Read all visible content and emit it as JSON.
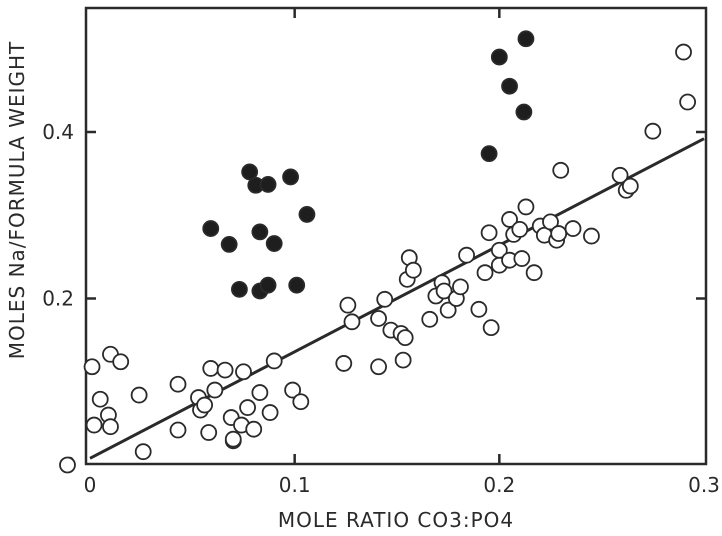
{
  "chart_data": {
    "type": "scatter",
    "title": "",
    "xlabel": "MOLE RATIO CO3:PO4",
    "ylabel": "MOLES Na/FORMULA WEIGHT",
    "xlim": [
      0,
      0.3
    ],
    "ylim": [
      0,
      0.56
    ],
    "x_ticks": [
      "0",
      "0.1",
      "0.2",
      "0.3"
    ],
    "y_ticks": [
      "0.2",
      "0.4"
    ],
    "y_origin_label": "0",
    "grid": false,
    "series": [
      {
        "marker": "open-circle",
        "points": [
          [
            -0.011,
            0.0
          ],
          [
            0.002,
            0.048
          ],
          [
            0.001,
            0.118
          ],
          [
            0.005,
            0.079
          ],
          [
            0.009,
            0.06
          ],
          [
            0.01,
            0.046
          ],
          [
            0.01,
            0.133
          ],
          [
            0.015,
            0.124
          ],
          [
            0.024,
            0.084
          ],
          [
            0.026,
            0.016
          ],
          [
            0.043,
            0.097
          ],
          [
            0.043,
            0.042
          ],
          [
            0.053,
            0.081
          ],
          [
            0.054,
            0.066
          ],
          [
            0.056,
            0.072
          ],
          [
            0.058,
            0.039
          ],
          [
            0.059,
            0.116
          ],
          [
            0.061,
            0.09
          ],
          [
            0.066,
            0.114
          ],
          [
            0.069,
            0.057
          ],
          [
            0.07,
            0.029
          ],
          [
            0.07,
            0.031
          ],
          [
            0.074,
            0.048
          ],
          [
            0.075,
            0.112
          ],
          [
            0.077,
            0.069
          ],
          [
            0.08,
            0.043
          ],
          [
            0.083,
            0.087
          ],
          [
            0.088,
            0.063
          ],
          [
            0.09,
            0.125
          ],
          [
            0.099,
            0.09
          ],
          [
            0.103,
            0.076
          ],
          [
            0.124,
            0.122
          ],
          [
            0.126,
            0.192
          ],
          [
            0.128,
            0.172
          ],
          [
            0.141,
            0.118
          ],
          [
            0.141,
            0.176
          ],
          [
            0.144,
            0.199
          ],
          [
            0.147,
            0.162
          ],
          [
            0.152,
            0.158
          ],
          [
            0.153,
            0.126
          ],
          [
            0.154,
            0.153
          ],
          [
            0.155,
            0.223
          ],
          [
            0.156,
            0.249
          ],
          [
            0.158,
            0.234
          ],
          [
            0.166,
            0.175
          ],
          [
            0.169,
            0.203
          ],
          [
            0.172,
            0.219
          ],
          [
            0.173,
            0.209
          ],
          [
            0.175,
            0.186
          ],
          [
            0.179,
            0.2
          ],
          [
            0.181,
            0.214
          ],
          [
            0.184,
            0.252
          ],
          [
            0.19,
            0.187
          ],
          [
            0.193,
            0.231
          ],
          [
            0.195,
            0.279
          ],
          [
            0.196,
            0.165
          ],
          [
            0.2,
            0.24
          ],
          [
            0.2,
            0.258
          ],
          [
            0.205,
            0.246
          ],
          [
            0.205,
            0.295
          ],
          [
            0.207,
            0.277
          ],
          [
            0.21,
            0.283
          ],
          [
            0.211,
            0.248
          ],
          [
            0.213,
            0.31
          ],
          [
            0.217,
            0.231
          ],
          [
            0.22,
            0.287
          ],
          [
            0.222,
            0.276
          ],
          [
            0.225,
            0.292
          ],
          [
            0.228,
            0.27
          ],
          [
            0.229,
            0.278
          ],
          [
            0.23,
            0.354
          ],
          [
            0.236,
            0.284
          ],
          [
            0.245,
            0.275
          ],
          [
            0.259,
            0.348
          ],
          [
            0.262,
            0.33
          ],
          [
            0.264,
            0.335
          ],
          [
            0.275,
            0.401
          ],
          [
            0.29,
            0.496
          ],
          [
            0.292,
            0.436
          ]
        ]
      },
      {
        "marker": "filled-circle",
        "points": [
          [
            0.059,
            0.284
          ],
          [
            0.068,
            0.265
          ],
          [
            0.073,
            0.211
          ],
          [
            0.078,
            0.352
          ],
          [
            0.081,
            0.336
          ],
          [
            0.083,
            0.28
          ],
          [
            0.083,
            0.209
          ],
          [
            0.087,
            0.216
          ],
          [
            0.087,
            0.337
          ],
          [
            0.09,
            0.266
          ],
          [
            0.098,
            0.346
          ],
          [
            0.101,
            0.216
          ],
          [
            0.106,
            0.301
          ],
          [
            0.195,
            0.374
          ],
          [
            0.2,
            0.49
          ],
          [
            0.205,
            0.455
          ],
          [
            0.212,
            0.424
          ],
          [
            0.213,
            0.512
          ]
        ]
      }
    ],
    "regression_line": {
      "x": [
        0,
        0.3
      ],
      "y": [
        0.008,
        0.392
      ]
    }
  }
}
